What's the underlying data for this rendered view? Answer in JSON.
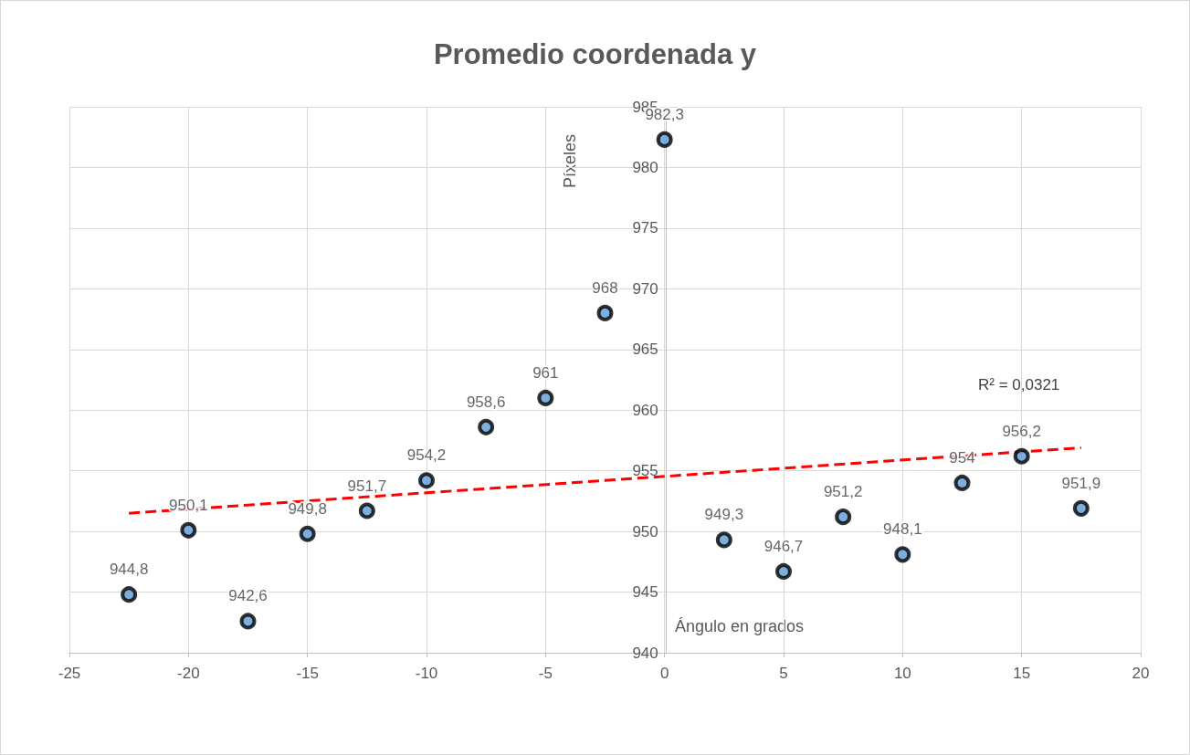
{
  "chart_data": {
    "type": "scatter",
    "title": "Promedio coordenada y",
    "xlabel": "Ángulo en grados",
    "ylabel": "Píxeles",
    "x": [
      -22.5,
      -20,
      -17.5,
      -15,
      -12.5,
      -10,
      -7.5,
      -5,
      -2.5,
      0,
      2.5,
      5,
      7.5,
      10,
      12.5,
      15,
      17.5
    ],
    "series": [
      {
        "color": "#000000",
        "values": [
          944.8,
          950.1,
          942.6,
          949.8,
          951.7,
          954.2,
          958.6,
          961,
          968,
          982.3,
          949.3,
          946.7,
          951.2,
          948.1,
          954,
          956.2,
          951.9
        ],
        "value_labels": [
          "944,8",
          "950,1",
          "942,6",
          "949,8",
          "951,7",
          "954,2",
          "958,6",
          "961",
          "968",
          "982,3",
          "949,3",
          "946,7",
          "951,2",
          "948,1",
          "954",
          "956,2",
          "951,9"
        ]
      },
      {
        "type": "line",
        "color": "#ff0000",
        "line_style": "dashed",
        "marker": "none",
        "x": [
          -22.5,
          17.5
        ],
        "values": [
          951.5,
          956.9
        ]
      }
    ],
    "annotations": [
      "R² = 0,0321"
    ],
    "xlim": [
      -25,
      20
    ],
    "xticks": [
      -25,
      -20,
      -15,
      -10,
      -5,
      0,
      5,
      10,
      15,
      20
    ],
    "ylim": [
      940,
      985
    ],
    "yticks": [
      940,
      945,
      950,
      955,
      960,
      965,
      970,
      975,
      980,
      985
    ],
    "grid": true,
    "marker": "circle"
  }
}
